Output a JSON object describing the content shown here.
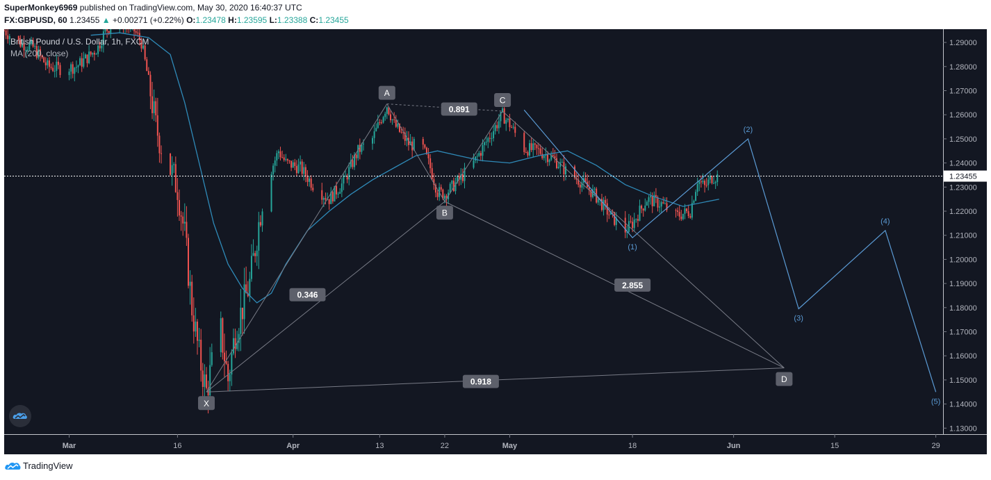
{
  "header": {
    "author": "SuperMonkey6969",
    "published": " published on TradingView.com, May 30, 2020 16:40:37 UTC",
    "symbol": "FX:GBPUSD, 60",
    "last": "1.23455",
    "change_arrow": "▲",
    "change": "+0.00271 (+0.22%)",
    "open_label": "O:",
    "open": "1.23478",
    "high_label": "H:",
    "high": "1.23595",
    "low_label": "L:",
    "low": "1.23388",
    "close_label": "C:",
    "close": "1.23455"
  },
  "legend": {
    "title": "British Pound / U.S. Dollar, 1h, FXCM",
    "indicator": "MA (200, close)"
  },
  "footer": {
    "brand": "TradingView",
    "logo_icon": "tradingview-logo-icon"
  },
  "colors": {
    "up": "#26a69a",
    "down": "#ef5350",
    "ma": "#2f8ab8",
    "wave": "#5b9bd5",
    "pattern": "#787b86",
    "label_bg": "#5d606b",
    "panel": "#131722"
  },
  "chart_data": {
    "type": "candlestick",
    "interval": "1h",
    "x_axis": {
      "type": "date",
      "range": [
        "2020-02-21",
        "2020-06-30"
      ],
      "ticks": [
        {
          "date": "2020-03-01",
          "label": "Mar"
        },
        {
          "date": "2020-03-16",
          "label": "16"
        },
        {
          "date": "2020-04-01",
          "label": "Apr"
        },
        {
          "date": "2020-04-13",
          "label": "13"
        },
        {
          "date": "2020-04-22",
          "label": "22"
        },
        {
          "date": "2020-05-01",
          "label": "May"
        },
        {
          "date": "2020-05-18",
          "label": "18"
        },
        {
          "date": "2020-06-01",
          "label": "Jun"
        },
        {
          "date": "2020-06-15",
          "label": "15"
        },
        {
          "date": "2020-06-29",
          "label": "29"
        }
      ]
    },
    "y_axis": {
      "range": [
        1.1275,
        1.2955
      ],
      "ticks": [
        "1.29000",
        "1.28000",
        "1.27000",
        "1.26000",
        "1.25000",
        "1.24000",
        "1.23000",
        "1.22000",
        "1.21000",
        "1.20000",
        "1.19000",
        "1.18000",
        "1.17000",
        "1.16000",
        "1.15000",
        "1.14000",
        "1.13000"
      ]
    },
    "last_price": {
      "value": 1.23455,
      "label": "1.23455"
    },
    "price_path": [
      [
        "2020-02-21",
        1.295
      ],
      [
        "2020-02-23",
        1.29
      ],
      [
        "2020-02-25",
        1.288
      ],
      [
        "2020-02-27",
        1.28
      ],
      [
        "2020-02-29",
        1.279
      ],
      [
        "2020-03-02",
        1.28
      ],
      [
        "2020-03-04",
        1.285
      ],
      [
        "2020-03-05",
        1.288
      ],
      [
        "2020-03-06",
        1.295
      ],
      [
        "2020-03-08",
        1.299
      ],
      [
        "2020-03-10",
        1.295
      ],
      [
        "2020-03-11",
        1.29
      ],
      [
        "2020-03-12",
        1.274
      ],
      [
        "2020-03-13",
        1.255
      ],
      [
        "2020-03-14",
        1.245
      ],
      [
        "2020-03-16",
        1.23
      ],
      [
        "2020-03-17",
        1.21
      ],
      [
        "2020-03-18",
        1.18
      ],
      [
        "2020-03-19",
        1.16
      ],
      [
        "2020-03-20",
        1.145
      ],
      [
        "2020-03-21",
        1.16
      ],
      [
        "2020-03-22",
        1.17
      ],
      [
        "2020-03-23",
        1.15
      ],
      [
        "2020-03-24",
        1.17
      ],
      [
        "2020-03-26",
        1.19
      ],
      [
        "2020-03-27",
        1.21
      ],
      [
        "2020-03-28",
        1.23
      ],
      [
        "2020-03-30",
        1.245
      ],
      [
        "2020-03-31",
        1.24
      ],
      [
        "2020-04-02",
        1.238
      ],
      [
        "2020-04-04",
        1.23
      ],
      [
        "2020-04-06",
        1.225
      ],
      [
        "2020-04-08",
        1.232
      ],
      [
        "2020-04-10",
        1.245
      ],
      [
        "2020-04-12",
        1.25
      ],
      [
        "2020-04-14",
        1.264
      ],
      [
        "2020-04-15",
        1.256
      ],
      [
        "2020-04-17",
        1.248
      ],
      [
        "2020-04-19",
        1.246
      ],
      [
        "2020-04-20",
        1.238
      ],
      [
        "2020-04-21",
        1.228
      ],
      [
        "2020-04-22",
        1.227
      ],
      [
        "2020-04-24",
        1.233
      ],
      [
        "2020-04-26",
        1.24
      ],
      [
        "2020-04-28",
        1.25
      ],
      [
        "2020-04-30",
        1.26
      ],
      [
        "2020-05-01",
        1.256
      ],
      [
        "2020-05-03",
        1.246
      ],
      [
        "2020-05-05",
        1.245
      ],
      [
        "2020-05-07",
        1.242
      ],
      [
        "2020-05-09",
        1.236
      ],
      [
        "2020-05-11",
        1.232
      ],
      [
        "2020-05-13",
        1.226
      ],
      [
        "2020-05-15",
        1.218
      ],
      [
        "2020-05-17",
        1.212
      ],
      [
        "2020-05-18",
        1.215
      ],
      [
        "2020-05-20",
        1.225
      ],
      [
        "2020-05-22",
        1.223
      ],
      [
        "2020-05-24",
        1.218
      ],
      [
        "2020-05-26",
        1.22
      ],
      [
        "2020-05-27",
        1.233
      ],
      [
        "2020-05-28",
        1.23
      ],
      [
        "2020-05-29",
        1.234
      ],
      [
        "2020-05-30",
        1.23455
      ]
    ],
    "ma_series": {
      "name": "MA (200, close)",
      "points": [
        [
          "2020-03-04",
          1.293
        ],
        [
          "2020-03-08",
          1.294
        ],
        [
          "2020-03-12",
          1.292
        ],
        [
          "2020-03-15",
          1.285
        ],
        [
          "2020-03-17",
          1.265
        ],
        [
          "2020-03-19",
          1.24
        ],
        [
          "2020-03-21",
          1.215
        ],
        [
          "2020-03-23",
          1.198
        ],
        [
          "2020-03-25",
          1.188
        ],
        [
          "2020-03-27",
          1.182
        ],
        [
          "2020-03-29",
          1.186
        ],
        [
          "2020-03-31",
          1.198
        ],
        [
          "2020-04-03",
          1.212
        ],
        [
          "2020-04-06",
          1.22
        ],
        [
          "2020-04-09",
          1.227
        ],
        [
          "2020-04-12",
          1.233
        ],
        [
          "2020-04-15",
          1.238
        ],
        [
          "2020-04-18",
          1.243
        ],
        [
          "2020-04-21",
          1.245
        ],
        [
          "2020-04-24",
          1.243
        ],
        [
          "2020-04-27",
          1.241
        ],
        [
          "2020-05-01",
          1.24
        ],
        [
          "2020-05-05",
          1.243
        ],
        [
          "2020-05-09",
          1.245
        ],
        [
          "2020-05-13",
          1.239
        ],
        [
          "2020-05-17",
          1.231
        ],
        [
          "2020-05-21",
          1.226
        ],
        [
          "2020-05-25",
          1.222
        ],
        [
          "2020-05-30",
          1.225
        ]
      ]
    },
    "harmonic_pattern": {
      "points": [
        {
          "label": "X",
          "date": "2020-03-20",
          "price": 1.145
        },
        {
          "label": "A",
          "date": "2020-04-14",
          "price": 1.2645
        },
        {
          "label": "B",
          "date": "2020-04-22",
          "price": 1.224
        },
        {
          "label": "C",
          "date": "2020-04-30",
          "price": 1.2615
        },
        {
          "label": "D",
          "date": "2020-06-08",
          "price": 1.155
        }
      ],
      "ratios": [
        {
          "value": "0.346",
          "date": "2020-04-03",
          "price": 1.1855
        },
        {
          "value": "0.891",
          "date": "2020-04-24",
          "price": 1.2625
        },
        {
          "value": "2.855",
          "date": "2020-05-18",
          "price": 1.1895
        },
        {
          "value": "0.918",
          "date": "2020-04-27",
          "price": 1.1495
        }
      ]
    },
    "elliott_wave": {
      "points": [
        {
          "label": "",
          "date": "2020-05-03",
          "price": 1.262
        },
        {
          "label": "(1)",
          "date": "2020-05-18",
          "price": 1.209
        },
        {
          "label": "(2)",
          "date": "2020-06-03",
          "price": 1.25
        },
        {
          "label": "(3)",
          "date": "2020-06-10",
          "price": 1.1795
        },
        {
          "label": "(4)",
          "date": "2020-06-22",
          "price": 1.212
        },
        {
          "label": "(5)",
          "date": "2020-06-29",
          "price": 1.145
        }
      ]
    }
  }
}
